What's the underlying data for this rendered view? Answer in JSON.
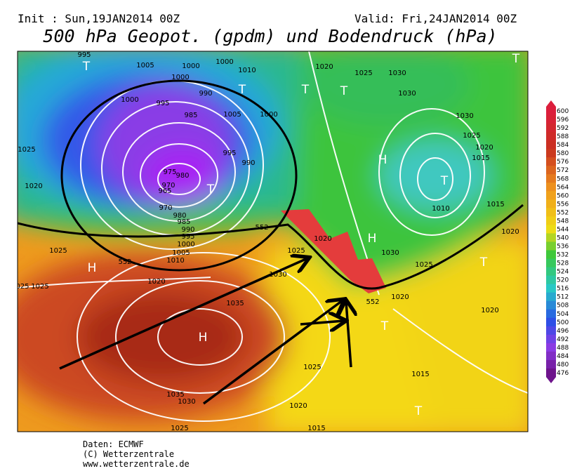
{
  "header": {
    "init": "Init : Sun,19JAN2014 00Z",
    "valid": "Valid: Fri,24JAN2014 00Z",
    "title": "500 hPa Geopot. (gpdm) und Bodendruck (hPa)"
  },
  "map_labels": [
    "995",
    "T",
    "1005",
    "1000",
    "1000",
    "1000",
    "1010",
    "1020",
    "1025",
    "1030",
    "T",
    "T",
    "T",
    "T",
    "990",
    "1030",
    "1000",
    "995",
    "985",
    "1005",
    "1000",
    "1030",
    "1025",
    "1025",
    "1020",
    "995",
    "1015",
    "H",
    "990",
    "980",
    "975",
    "T",
    "970",
    "965",
    "T",
    "1020",
    "970",
    "1010",
    "1015",
    "980",
    "985",
    "990",
    "1020",
    "995",
    "1020",
    "H",
    "1000",
    "1025",
    "1025",
    "1030",
    "1005",
    "1010",
    "T",
    "1025",
    "H",
    "1030",
    "1020",
    "025",
    "1025",
    "1020",
    "1035",
    "1020",
    "T",
    "H",
    "1025",
    "1015",
    "1035",
    "1030",
    "1020",
    "T",
    "1025",
    "1015",
    "552",
    "552",
    "552"
  ],
  "colorbar": [
    600,
    596,
    592,
    588,
    584,
    580,
    576,
    572,
    568,
    564,
    560,
    556,
    552,
    548,
    544,
    540,
    536,
    532,
    528,
    524,
    520,
    516,
    512,
    508,
    504,
    500,
    496,
    492,
    488,
    484,
    480,
    476
  ],
  "credits": [
    "Daten: ECMWF",
    "(C) Wetterzentrale",
    "www.wetterzentrale.de"
  ]
}
